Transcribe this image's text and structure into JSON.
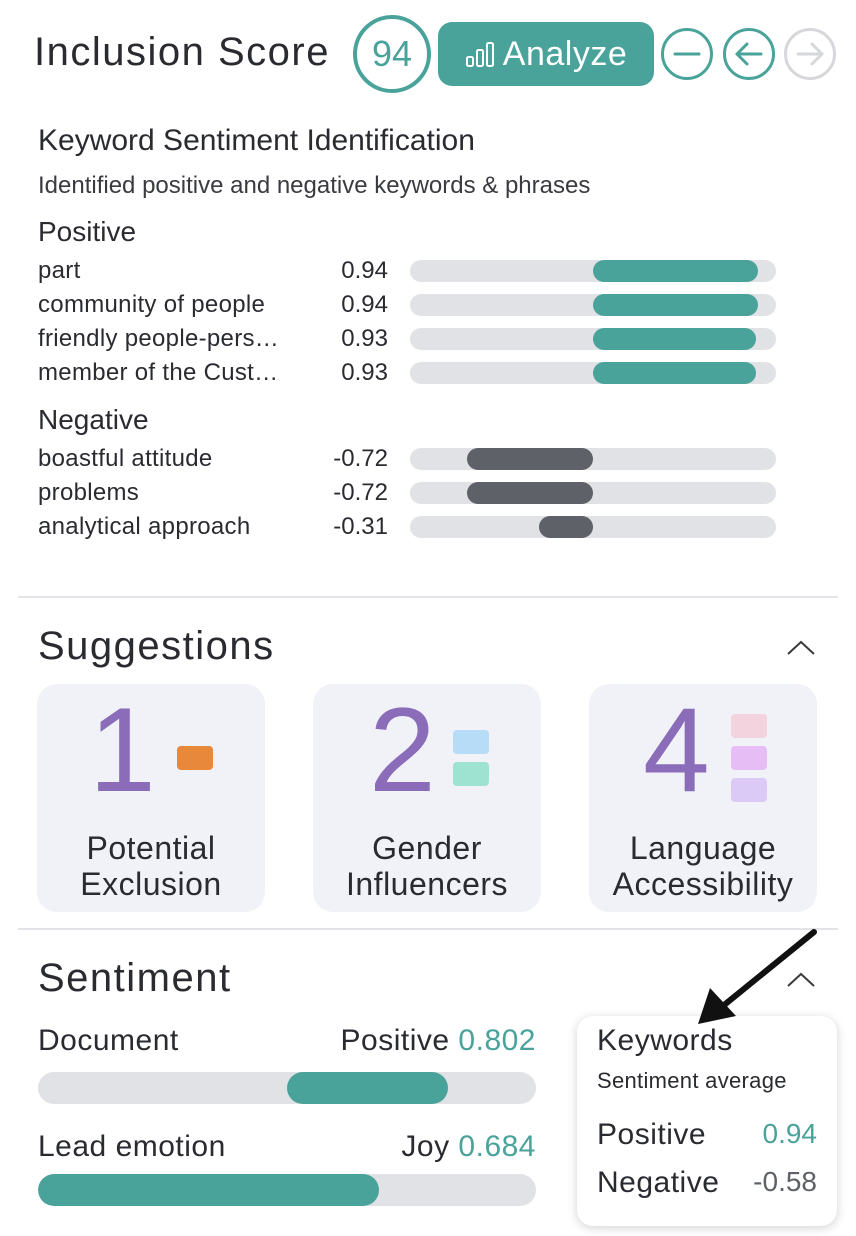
{
  "header": {
    "title": "Inclusion Score",
    "score": "94",
    "analyze_label": "Analyze",
    "icons": [
      "bar-chart-icon",
      "minus-circle-icon",
      "arrow-left-circle-icon",
      "arrow-right-circle-icon"
    ]
  },
  "keywords": {
    "title": "Keyword Sentiment Identification",
    "subtitle": "Identified positive and negative keywords & phrases",
    "positive_label": "Positive",
    "negative_label": "Negative",
    "positive": [
      {
        "label": "part",
        "score": "0.94",
        "value": 0.94
      },
      {
        "label": "community of people",
        "score": "0.94",
        "value": 0.94
      },
      {
        "label": "friendly people-pers…",
        "score": "0.93",
        "value": 0.93
      },
      {
        "label": "member of the Cust…",
        "score": "0.93",
        "value": 0.93
      }
    ],
    "negative": [
      {
        "label": "boastful attitude",
        "score": "-0.72",
        "value": -0.72
      },
      {
        "label": "problems",
        "score": "-0.72",
        "value": -0.72
      },
      {
        "label": "analytical approach",
        "score": "-0.31",
        "value": -0.31
      }
    ]
  },
  "suggestions": {
    "title": "Suggestions",
    "cards": [
      {
        "count": "1",
        "label_line1": "Potential",
        "label_line2": "Exclusion",
        "swatches": [
          "#e8883a"
        ]
      },
      {
        "count": "2",
        "label_line1": "Gender",
        "label_line2": "Influencers",
        "swatches": [
          "#b6dcf7",
          "#9ee3d2"
        ]
      },
      {
        "count": "4",
        "label_line1": "Language",
        "label_line2": "Accessibility",
        "swatches": [
          "#f3d3de",
          "#e7bdf6",
          "#dccaf6"
        ]
      }
    ]
  },
  "sentiment": {
    "title": "Sentiment",
    "document_label": "Document",
    "document_sentiment": "Positive",
    "document_score": "0.802",
    "document_value": 0.802,
    "lead_emotion_label": "Lead emotion",
    "lead_emotion": "Joy",
    "lead_emotion_score": "0.684",
    "lead_emotion_value": 0.684,
    "keywords_box": {
      "title": "Keywords",
      "subtitle": "Sentiment average",
      "positive_label": "Positive",
      "positive_value": "0.94",
      "negative_label": "Negative",
      "negative_value": "-0.58"
    }
  },
  "colors": {
    "accent": "#4aa39a",
    "negative_bar": "#5e6167",
    "track": "#e1e2e6",
    "suggestion_number": "#8a6cb8"
  }
}
